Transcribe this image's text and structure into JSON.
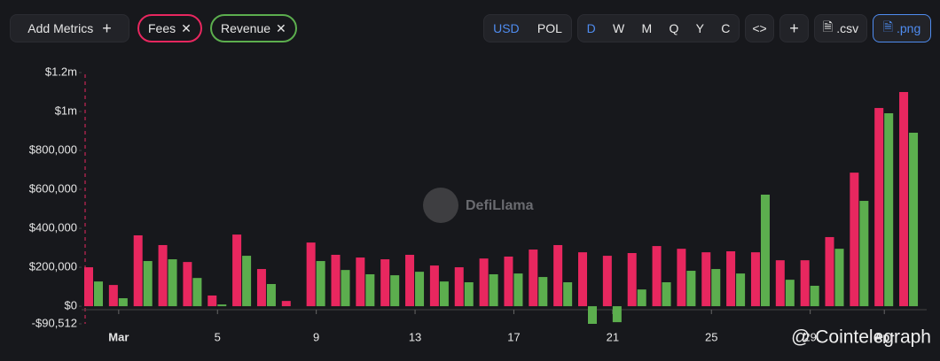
{
  "toolbar": {
    "add_metrics": "Add Metrics",
    "currencies": [
      "USD",
      "POL"
    ],
    "intervals": [
      "D",
      "W",
      "M",
      "Q",
      "Y",
      "C"
    ],
    "embed": "<>",
    "plus": "+",
    "csv": ".csv",
    "png": ".png"
  },
  "watermark": "DefiLlama",
  "source_watermark": "@ Cointelegraph",
  "chart_data": {
    "type": "bar",
    "categories": [
      null,
      "Mar",
      null,
      null,
      null,
      "5",
      null,
      null,
      null,
      "9",
      null,
      null,
      null,
      "13",
      null,
      null,
      null,
      "17",
      null,
      null,
      null,
      "21",
      null,
      null,
      null,
      "25",
      null,
      null,
      null,
      "29",
      null,
      null,
      "Apr",
      null
    ],
    "series": [
      {
        "name": "Fees",
        "color": "#e8275f",
        "values": [
          200000,
          109000,
          364000,
          314000,
          227000,
          55000,
          368000,
          191000,
          27000,
          327000,
          264000,
          250000,
          241000,
          264000,
          209000,
          200000,
          245000,
          255000,
          291000,
          314000,
          277000,
          259000,
          273000,
          309000,
          295000,
          277000,
          282000,
          277000,
          236000,
          236000,
          355000,
          686000,
          1018000,
          1100000
        ]
      },
      {
        "name": "Revenue",
        "color": "#5cae4e",
        "values": [
          127000,
          41000,
          232000,
          241000,
          145000,
          9000,
          259000,
          114000,
          0,
          232000,
          186000,
          164000,
          159000,
          177000,
          127000,
          123000,
          164000,
          168000,
          150000,
          123000,
          -90512,
          -82000,
          86000,
          123000,
          182000,
          191000,
          168000,
          573000,
          136000,
          105000,
          295000,
          541000,
          991000,
          891000
        ]
      }
    ],
    "ylim": [
      -90512,
      1200000
    ],
    "yticks": [
      {
        "value": -90512,
        "label": "-$90,512"
      },
      {
        "value": 0,
        "label": "$0"
      },
      {
        "value": 200000,
        "label": "$200,000"
      },
      {
        "value": 400000,
        "label": "$400,000"
      },
      {
        "value": 600000,
        "label": "$600,000"
      },
      {
        "value": 800000,
        "label": "$800,000"
      },
      {
        "value": 1000000,
        "label": "$1m"
      },
      {
        "value": 1200000,
        "label": "$1.2m"
      }
    ],
    "grid": false
  }
}
